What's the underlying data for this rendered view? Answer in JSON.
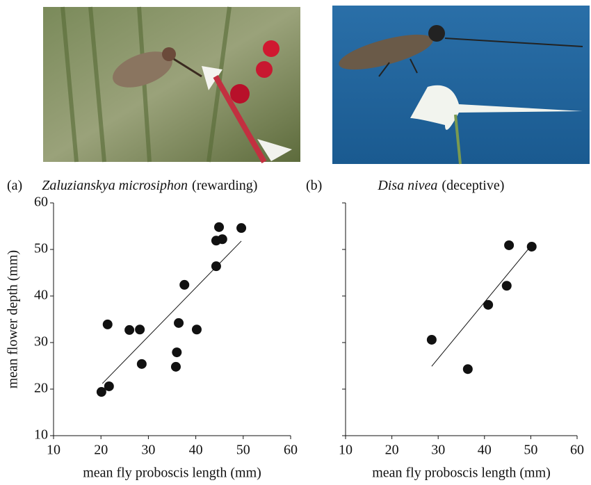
{
  "chart_data": [
    {
      "type": "scatter",
      "panel_label": "(a)",
      "title": "Zaluzianskya microsiphon",
      "subtitle": "(rewarding)",
      "x": [
        21.4,
        21.7,
        20.1,
        26.0,
        28.2,
        28.6,
        36.0,
        35.8,
        36.4,
        37.6,
        40.2,
        44.3,
        44.3,
        44.9,
        45.6,
        49.6
      ],
      "y": [
        33.9,
        20.6,
        19.4,
        32.7,
        32.8,
        25.4,
        27.9,
        24.8,
        34.2,
        42.4,
        32.8,
        46.4,
        51.9,
        54.8,
        52.2,
        54.6
      ],
      "color": "#111111",
      "trend_line": {
        "x": [
          20.3,
          49.6
        ],
        "y": [
          21.2,
          51.8
        ]
      },
      "xlim": [
        10,
        60
      ],
      "ylim": [
        10,
        60
      ],
      "xticks": [
        10,
        20,
        30,
        40,
        50,
        60
      ],
      "yticks": [
        10,
        20,
        30,
        40,
        50,
        60
      ],
      "xlabel": "mean fly proboscis length (mm)",
      "ylabel": "mean flower depth (mm)"
    },
    {
      "type": "scatter",
      "panel_label": "(b)",
      "title": "Disa nivea",
      "subtitle": "(deceptive)",
      "x": [
        28.6,
        36.4,
        40.8,
        44.8,
        45.3,
        50.2
      ],
      "y": [
        30.6,
        24.3,
        38.1,
        42.2,
        50.9,
        50.6
      ],
      "color": "#111111",
      "trend_line": {
        "x": [
          28.6,
          49.9
        ],
        "y": [
          24.9,
          50.6
        ]
      },
      "xlim": [
        10,
        60
      ],
      "ylim": [
        10,
        60
      ],
      "xticks": [
        10,
        20,
        30,
        40,
        50,
        60
      ],
      "yticks": [
        10,
        20,
        30,
        40,
        50,
        60
      ],
      "show_ytick_labels": false,
      "xlabel": "mean fly proboscis length (mm)"
    }
  ]
}
